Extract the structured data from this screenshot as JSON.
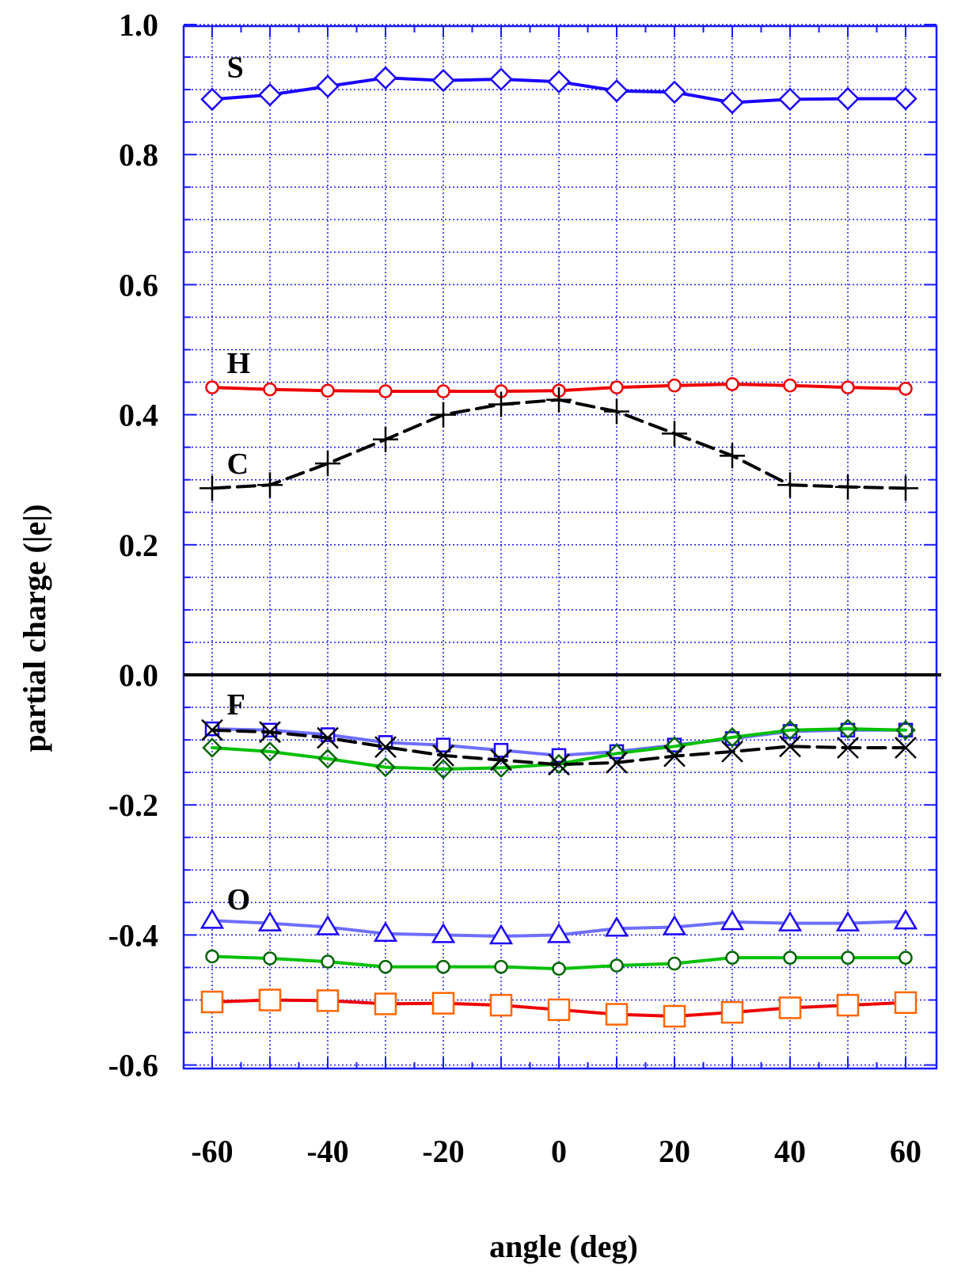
{
  "chart_data": {
    "type": "line",
    "xlabel": "angle (deg)",
    "ylabel": "partial charge (|e|)",
    "xlim": [
      -65,
      60
    ],
    "ylim": [
      -0.6,
      1.0
    ],
    "x": [
      -60,
      -50,
      -40,
      -30,
      -20,
      -10,
      0,
      10,
      20,
      30,
      40,
      50,
      60
    ],
    "x_ticks": [
      -60,
      -40,
      -20,
      0,
      20,
      40,
      60
    ],
    "x_tick_labels": [
      "-60",
      "-40",
      "-20",
      "0",
      "20",
      "40",
      "60"
    ],
    "y_ticks": [
      -0.6,
      -0.4,
      -0.2,
      0.0,
      0.2,
      0.4,
      0.6,
      0.8,
      1.0
    ],
    "y_tick_labels": [
      "-0.6",
      "-0.4",
      "-0.2",
      "0.0",
      "0.2",
      "0.4",
      "0.6",
      "0.8",
      "1.0"
    ],
    "grid": true,
    "zero_line": true,
    "labels": [
      {
        "text": "S",
        "x": -58,
        "y": 0.935
      },
      {
        "text": "H",
        "x": -58,
        "y": 0.48
      },
      {
        "text": "C",
        "x": -58,
        "y": 0.325
      },
      {
        "text": "F",
        "x": -58,
        "y": -0.045
      },
      {
        "text": "O",
        "x": -58,
        "y": -0.345
      }
    ],
    "series": [
      {
        "group": "S",
        "color": "#1a00ff",
        "marker": "diamond",
        "dash": false,
        "values": [
          0.885,
          0.892,
          0.905,
          0.918,
          0.914,
          0.916,
          0.912,
          0.898,
          0.896,
          0.88,
          0.885,
          0.886,
          0.886
        ]
      },
      {
        "group": "H",
        "color": "#ee0000",
        "marker": "circle",
        "dash": false,
        "values": [
          0.442,
          0.439,
          0.437,
          0.436,
          0.436,
          0.436,
          0.437,
          0.442,
          0.445,
          0.447,
          0.445,
          0.442,
          0.44
        ]
      },
      {
        "group": "C",
        "color": "#000000",
        "marker": "plus",
        "dash": true,
        "values": [
          0.287,
          0.292,
          0.325,
          0.362,
          0.4,
          0.416,
          0.423,
          0.405,
          0.371,
          0.337,
          0.292,
          0.289,
          0.287
        ]
      },
      {
        "group": "F",
        "color": "#6e6eff",
        "marker": "square",
        "dash": false,
        "values": [
          -0.083,
          -0.085,
          -0.092,
          -0.104,
          -0.108,
          -0.116,
          -0.124,
          -0.118,
          -0.108,
          -0.098,
          -0.087,
          -0.085,
          -0.085
        ]
      },
      {
        "group": "F",
        "color": "#00c000",
        "marker": "diamond-green",
        "dash": false,
        "values": [
          -0.112,
          -0.118,
          -0.129,
          -0.142,
          -0.145,
          -0.143,
          -0.137,
          -0.121,
          -0.11,
          -0.096,
          -0.085,
          -0.083,
          -0.085
        ]
      },
      {
        "group": "F",
        "color": "#000000",
        "marker": "x",
        "dash": true,
        "values": [
          -0.085,
          -0.088,
          -0.097,
          -0.111,
          -0.124,
          -0.131,
          -0.138,
          -0.135,
          -0.125,
          -0.118,
          -0.11,
          -0.112,
          -0.112
        ]
      },
      {
        "group": "O",
        "color": "#6e6eff",
        "marker": "triangle",
        "dash": false,
        "values": [
          -0.378,
          -0.382,
          -0.388,
          -0.398,
          -0.4,
          -0.402,
          -0.4,
          -0.39,
          -0.388,
          -0.38,
          -0.382,
          -0.382,
          -0.379
        ]
      },
      {
        "group": "O",
        "color": "#00c000",
        "marker": "circle-green",
        "dash": false,
        "values": [
          -0.433,
          -0.436,
          -0.441,
          -0.449,
          -0.449,
          -0.449,
          -0.452,
          -0.447,
          -0.444,
          -0.435,
          -0.435,
          -0.435,
          -0.435
        ]
      },
      {
        "group": "O",
        "color": "#ee0000",
        "marker": "square-orange",
        "dash": false,
        "values": [
          -0.503,
          -0.5,
          -0.501,
          -0.506,
          -0.505,
          -0.508,
          -0.515,
          -0.522,
          -0.525,
          -0.519,
          -0.512,
          -0.508,
          -0.504
        ]
      }
    ]
  }
}
